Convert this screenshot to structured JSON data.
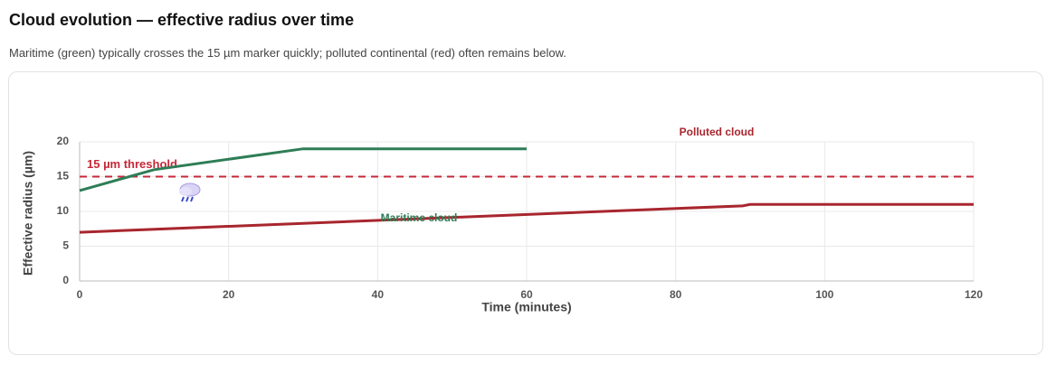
{
  "chart_data": {
    "type": "line",
    "title": "Cloud evolution — effective radius over time",
    "subtitle": "Maritime (green) typically crosses the 15 µm marker quickly; polluted continental (red) often remains below.",
    "x_label": "Time (minutes)",
    "y_label": "Effective radius (µm)",
    "xlim": [
      0,
      120
    ],
    "xticks": [
      0,
      20,
      40,
      60,
      80,
      100,
      120
    ],
    "ylim": [
      0,
      20
    ],
    "yticks": [
      0,
      5,
      10,
      15,
      20
    ],
    "grid": true,
    "series": [
      {
        "name": "Maritime cloud",
        "color": "#2e7d57",
        "x": [
          0,
          10,
          30,
          60
        ],
        "values": [
          13,
          16,
          19,
          19
        ]
      },
      {
        "name": "Polluted cloud",
        "color": "#a8262e",
        "x": [
          0,
          89,
          90,
          120
        ],
        "values": [
          7,
          10.8,
          11,
          11
        ]
      }
    ],
    "threshold": {
      "value": 15,
      "label": "15 µm threshold",
      "color": "#c62838"
    }
  }
}
